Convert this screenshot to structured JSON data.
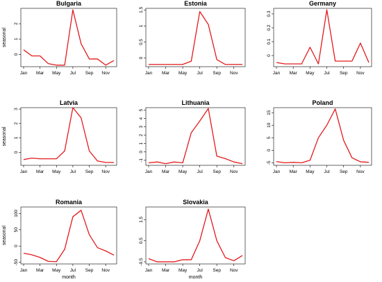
{
  "chart_data": [
    {
      "type": "line",
      "title": "Bulgaria",
      "xlabel": "",
      "ylabel": "seasonal",
      "x": [
        "Jan",
        "Feb",
        "Mar",
        "Apr",
        "May",
        "Jun",
        "Jul",
        "Aug",
        "Sep",
        "Oct",
        "Nov",
        "Dec"
      ],
      "x_tick_labels": [
        "Jan",
        "Mar",
        "May",
        "Jul",
        "Sep",
        "Nov"
      ],
      "y_ticks": [
        0,
        1,
        2
      ],
      "ylim": [
        -0.8,
        3.0
      ],
      "series_color": "#e31a1c",
      "values": [
        0.3,
        -0.1,
        -0.1,
        -0.6,
        -0.7,
        -0.7,
        2.9,
        0.7,
        -0.3,
        -0.3,
        -0.7,
        -0.4
      ]
    },
    {
      "type": "line",
      "title": "Estonia",
      "xlabel": "",
      "ylabel": "",
      "x": [
        "Jan",
        "Feb",
        "Mar",
        "Apr",
        "May",
        "Jun",
        "Jul",
        "Aug",
        "Sep",
        "Oct",
        "Nov",
        "Dec"
      ],
      "x_tick_labels": [
        "Jan",
        "Mar",
        "May",
        "Jul",
        "Sep",
        "Nov"
      ],
      "y_ticks": [
        0.0,
        0.5,
        1.0,
        1.5
      ],
      "ylim": [
        -0.27,
        1.55
      ],
      "series_color": "#e31a1c",
      "values": [
        -0.2,
        -0.2,
        -0.2,
        -0.2,
        -0.2,
        -0.1,
        1.45,
        1.05,
        -0.05,
        -0.2,
        -0.2,
        -0.2
      ]
    },
    {
      "type": "line",
      "title": "Germany",
      "xlabel": "",
      "ylabel": "",
      "x": [
        "Jan",
        "Feb",
        "Mar",
        "Apr",
        "May",
        "Jun",
        "Jul",
        "Aug",
        "Sep",
        "Oct",
        "Nov",
        "Dec"
      ],
      "x_tick_labels": [
        "Jan",
        "Mar",
        "May",
        "Jul",
        "Sep",
        "Nov"
      ],
      "y_ticks": [
        0.0,
        0.1,
        0.2,
        0.3
      ],
      "ylim": [
        -0.08,
        0.34
      ],
      "series_color": "#e31a1c",
      "values": [
        -0.05,
        -0.06,
        -0.06,
        -0.06,
        0.06,
        -0.06,
        0.33,
        -0.04,
        -0.04,
        -0.04,
        0.09,
        -0.05
      ]
    },
    {
      "type": "line",
      "title": "Latvia",
      "xlabel": "",
      "ylabel": "seasonal",
      "x": [
        "Jan",
        "Feb",
        "Mar",
        "Apr",
        "May",
        "Jun",
        "Jul",
        "Aug",
        "Sep",
        "Oct",
        "Nov",
        "Dec"
      ],
      "x_tick_labels": [
        "Jan",
        "Mar",
        "May",
        "Jul",
        "Sep",
        "Nov"
      ],
      "y_ticks": [
        0,
        1,
        2,
        3
      ],
      "ylim": [
        -0.9,
        3.1
      ],
      "series_color": "#e31a1c",
      "values": [
        -0.5,
        -0.4,
        -0.45,
        -0.45,
        -0.45,
        0.1,
        3.1,
        2.4,
        0.1,
        -0.6,
        -0.7,
        -0.7
      ]
    },
    {
      "type": "line",
      "title": "Lithuania",
      "xlabel": "",
      "ylabel": "",
      "x": [
        "Jan",
        "Feb",
        "Mar",
        "Apr",
        "May",
        "Jun",
        "Jul",
        "Aug",
        "Sep",
        "Oct",
        "Nov",
        "Dec"
      ],
      "x_tick_labels": [
        "Jan",
        "Mar",
        "May",
        "Jul",
        "Sep",
        "Nov"
      ],
      "y_ticks": [
        -1,
        0,
        1,
        2,
        3,
        4,
        5
      ],
      "ylim": [
        -1.6,
        5.3
      ],
      "series_color": "#e31a1c",
      "values": [
        -1.3,
        -1.2,
        -1.4,
        -1.2,
        -1.3,
        2.3,
        3.7,
        5.2,
        -0.5,
        -0.8,
        -1.2,
        -1.4
      ]
    },
    {
      "type": "line",
      "title": "Poland",
      "xlabel": "",
      "ylabel": "",
      "x": [
        "Jan",
        "Feb",
        "Mar",
        "Apr",
        "May",
        "Jun",
        "Jul",
        "Aug",
        "Sep",
        "Oct",
        "Nov",
        "Dec"
      ],
      "x_tick_labels": [
        "Jan",
        "Mar",
        "May",
        "Jul",
        "Sep",
        "Nov"
      ],
      "y_ticks": [
        -5,
        0,
        5,
        10,
        15
      ],
      "ylim": [
        -6,
        17
      ],
      "series_color": "#e31a1c",
      "values": [
        -4.5,
        -5,
        -4.8,
        -5,
        -4,
        5,
        10,
        16.5,
        4,
        -3,
        -4.6,
        -4.8
      ]
    },
    {
      "type": "line",
      "title": "Romania",
      "xlabel": "month",
      "ylabel": "seasonal",
      "x": [
        "Jan",
        "Feb",
        "Mar",
        "Apr",
        "May",
        "Jun",
        "Jul",
        "Aug",
        "Sep",
        "Oct",
        "Nov",
        "Dec"
      ],
      "x_tick_labels": [
        "Jan",
        "Mar",
        "May",
        "Jul",
        "Sep",
        "Nov"
      ],
      "y_ticks": [
        -50,
        0,
        50,
        100
      ],
      "ylim": [
        -55,
        120
      ],
      "series_color": "#e31a1c",
      "values": [
        -22,
        -27,
        -35,
        -47,
        -48,
        -10,
        90,
        110,
        35,
        -5,
        -15,
        -28
      ]
    },
    {
      "type": "line",
      "title": "Slovakia",
      "xlabel": "month",
      "ylabel": "",
      "x": [
        "Jan",
        "Feb",
        "Mar",
        "Apr",
        "May",
        "Jun",
        "Jul",
        "Aug",
        "Sep",
        "Oct",
        "Nov",
        "Dec"
      ],
      "x_tick_labels": [
        "Jan",
        "Mar",
        "May",
        "Jul",
        "Sep",
        "Nov"
      ],
      "y_ticks": [
        -0.5,
        0.5,
        1.5
      ],
      "ylim": [
        -0.6,
        2.1
      ],
      "series_color": "#e31a1c",
      "values": [
        -0.35,
        -0.5,
        -0.5,
        -0.5,
        -0.4,
        -0.4,
        0.5,
        2.0,
        0.5,
        -0.3,
        -0.45,
        -0.2
      ]
    }
  ]
}
